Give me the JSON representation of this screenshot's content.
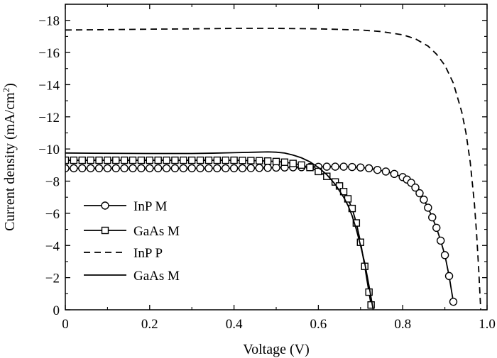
{
  "chart_data": {
    "type": "line",
    "xlabel": "Voltage (V)",
    "ylabel": "Current density (mA/cm",
    "ylabel_superscript": "2",
    "ylabel_suffix": ")",
    "xlim": [
      0,
      1.0
    ],
    "ylim": [
      0,
      -19
    ],
    "x_ticks": [
      0,
      0.2,
      0.4,
      0.6,
      0.8,
      1.0
    ],
    "x_tick_labels": [
      "0",
      "0.2",
      "0.4",
      "0.6",
      "0.8",
      "1.0"
    ],
    "y_ticks": [
      0,
      -2,
      -4,
      -6,
      -8,
      -10,
      -12,
      -14,
      -16,
      -18
    ],
    "y_tick_labels": [
      "0",
      "−2",
      "−4",
      "−6",
      "−8",
      "−10",
      "−12",
      "−14",
      "−16",
      "−18"
    ],
    "grid": false,
    "legend_position": "lower-left",
    "series": [
      {
        "name": "InP M",
        "style": "solid",
        "marker": "circle",
        "x": [
          0.0,
          0.02,
          0.04,
          0.06,
          0.08,
          0.1,
          0.12,
          0.14,
          0.16,
          0.18,
          0.2,
          0.22,
          0.24,
          0.26,
          0.28,
          0.3,
          0.32,
          0.34,
          0.36,
          0.38,
          0.4,
          0.42,
          0.44,
          0.46,
          0.48,
          0.5,
          0.52,
          0.54,
          0.56,
          0.58,
          0.6,
          0.62,
          0.64,
          0.66,
          0.68,
          0.7,
          0.72,
          0.74,
          0.76,
          0.78,
          0.8,
          0.81,
          0.82,
          0.83,
          0.84,
          0.85,
          0.86,
          0.87,
          0.88,
          0.89,
          0.9,
          0.91,
          0.92
        ],
        "y": [
          -8.8,
          -8.8,
          -8.8,
          -8.8,
          -8.8,
          -8.8,
          -8.8,
          -8.8,
          -8.8,
          -8.8,
          -8.8,
          -8.8,
          -8.8,
          -8.8,
          -8.8,
          -8.8,
          -8.8,
          -8.8,
          -8.8,
          -8.8,
          -8.8,
          -8.8,
          -8.81,
          -8.82,
          -8.83,
          -8.84,
          -8.85,
          -8.86,
          -8.87,
          -8.88,
          -8.89,
          -8.9,
          -8.9,
          -8.9,
          -8.88,
          -8.85,
          -8.8,
          -8.7,
          -8.6,
          -8.45,
          -8.25,
          -8.1,
          -7.9,
          -7.6,
          -7.25,
          -6.85,
          -6.35,
          -5.75,
          -5.1,
          -4.3,
          -3.4,
          -2.1,
          -0.5
        ]
      },
      {
        "name": "GaAs M",
        "style": "solid",
        "marker": "square",
        "x": [
          0.0,
          0.02,
          0.04,
          0.06,
          0.08,
          0.1,
          0.12,
          0.14,
          0.16,
          0.18,
          0.2,
          0.22,
          0.24,
          0.26,
          0.28,
          0.3,
          0.32,
          0.34,
          0.36,
          0.38,
          0.4,
          0.42,
          0.44,
          0.46,
          0.48,
          0.5,
          0.52,
          0.54,
          0.56,
          0.58,
          0.6,
          0.62,
          0.64,
          0.65,
          0.66,
          0.67,
          0.68,
          0.69,
          0.7,
          0.71,
          0.72,
          0.725
        ],
        "y": [
          -9.3,
          -9.3,
          -9.3,
          -9.3,
          -9.3,
          -9.3,
          -9.3,
          -9.3,
          -9.3,
          -9.3,
          -9.3,
          -9.3,
          -9.3,
          -9.3,
          -9.3,
          -9.3,
          -9.3,
          -9.3,
          -9.3,
          -9.3,
          -9.3,
          -9.29,
          -9.28,
          -9.27,
          -9.25,
          -9.22,
          -9.18,
          -9.1,
          -9.0,
          -8.85,
          -8.6,
          -8.3,
          -7.95,
          -7.7,
          -7.35,
          -6.9,
          -6.3,
          -5.4,
          -4.2,
          -2.7,
          -1.1,
          -0.3
        ]
      },
      {
        "name": "InP P",
        "style": "dashed",
        "marker": "none",
        "x": [
          0.0,
          0.1,
          0.2,
          0.3,
          0.4,
          0.5,
          0.6,
          0.7,
          0.75,
          0.8,
          0.83,
          0.86,
          0.88,
          0.9,
          0.92,
          0.94,
          0.95,
          0.96,
          0.97,
          0.975,
          0.98,
          0.985
        ],
        "y": [
          -17.4,
          -17.42,
          -17.45,
          -17.47,
          -17.5,
          -17.5,
          -17.47,
          -17.4,
          -17.3,
          -17.1,
          -16.85,
          -16.4,
          -15.9,
          -15.2,
          -14.1,
          -12.3,
          -11.0,
          -9.2,
          -6.6,
          -4.8,
          -2.6,
          0.0
        ]
      },
      {
        "name": "GaAs M",
        "style": "solid",
        "marker": "none",
        "x": [
          0.0,
          0.1,
          0.2,
          0.3,
          0.35,
          0.4,
          0.45,
          0.48,
          0.5,
          0.52,
          0.54,
          0.56,
          0.58,
          0.6,
          0.62,
          0.64,
          0.66,
          0.67,
          0.68,
          0.69,
          0.7,
          0.71,
          0.72,
          0.73
        ],
        "y": [
          -9.75,
          -9.73,
          -9.72,
          -9.72,
          -9.74,
          -9.77,
          -9.8,
          -9.82,
          -9.8,
          -9.75,
          -9.62,
          -9.45,
          -9.2,
          -8.85,
          -8.4,
          -7.8,
          -7.0,
          -6.5,
          -5.85,
          -5.0,
          -4.0,
          -2.9,
          -1.5,
          0.0
        ]
      }
    ]
  }
}
